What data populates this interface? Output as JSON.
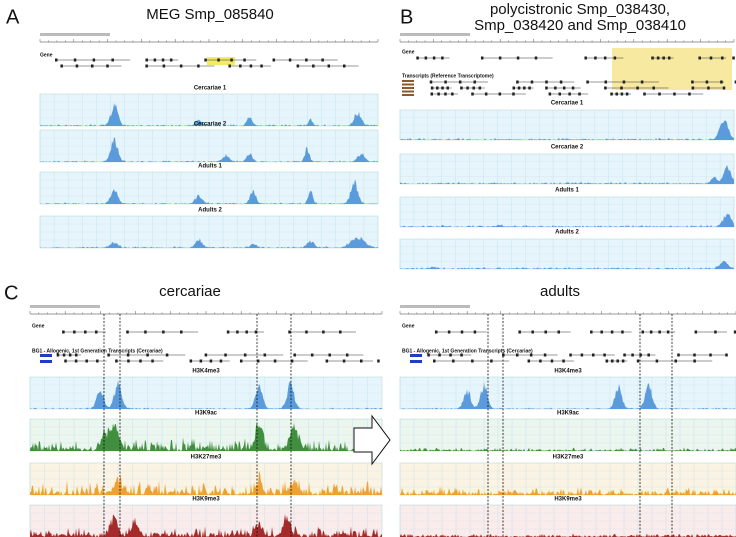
{
  "panels": [
    {
      "letter": "A",
      "title": "MEG Smp_085840",
      "gene_label": "Gene",
      "tracks": [
        "Cercariae 1",
        "Cercariae 2",
        "Adults 1",
        "Adults 2"
      ]
    },
    {
      "letter": "B",
      "title": [
        "polycistronic Smp_038430,",
        "Smp_038420 and Smp_038410"
      ],
      "gene_label": "Gene",
      "transcripts_label": "Transcripts (Reference Transcriptome)",
      "tracks": [
        "Cercariae 1",
        "Cercariae 2",
        "Adults 1",
        "Adults 2"
      ]
    },
    {
      "letter": "C",
      "views": [
        {
          "title": "cercariae",
          "gene_label": "Gene",
          "transcripts_label": "BG1 - Allogenic, 1st Generation Transcripts (Cercariae)",
          "tracks": [
            "H3K4me3",
            "H3K9ac",
            "H3K27me3",
            "H3K9me3"
          ]
        },
        {
          "title": "adults",
          "gene_label": "Gene",
          "transcripts_label": "BG1 - Allogenic, 1st Generation Transcripts (Cercariae)",
          "tracks": [
            "H3K4me3",
            "H3K9ac",
            "H3K27me3",
            "H3K9me3"
          ]
        }
      ]
    }
  ]
}
